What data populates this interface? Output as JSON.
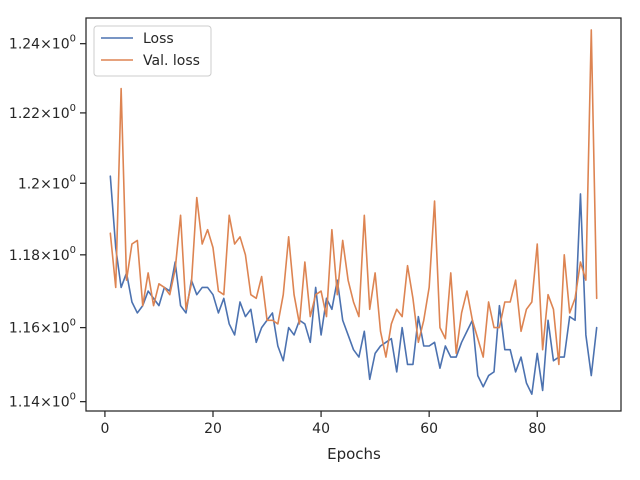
{
  "chart_data": {
    "type": "line",
    "title": "",
    "xlabel": "Epochs",
    "ylabel": "",
    "yscale": "log",
    "xlim": [
      -3.5,
      95.5
    ],
    "ylim": [
      1.1375,
      1.2475
    ],
    "xticks": [
      0,
      20,
      40,
      60,
      80
    ],
    "yticks": [
      1.14,
      1.16,
      1.18,
      1.2,
      1.22,
      1.24
    ],
    "ytick_labels": [
      {
        "mant": "1.14",
        "exp": "0"
      },
      {
        "mant": "1.16",
        "exp": "0"
      },
      {
        "mant": "1.18",
        "exp": "0"
      },
      {
        "mant": "1.2",
        "exp": "0"
      },
      {
        "mant": "1.22",
        "exp": "0"
      },
      {
        "mant": "1.24",
        "exp": "0"
      }
    ],
    "times_sign": "×",
    "grid": false,
    "legend_position": "top-left",
    "series": [
      {
        "name": "Loss",
        "color": "#4c72b0",
        "x": [
          1,
          2,
          3,
          4,
          5,
          6,
          7,
          8,
          9,
          10,
          11,
          12,
          13,
          14,
          15,
          16,
          17,
          18,
          19,
          20,
          21,
          22,
          23,
          24,
          25,
          26,
          27,
          28,
          29,
          30,
          31,
          32,
          33,
          34,
          35,
          36,
          37,
          38,
          39,
          40,
          41,
          42,
          43,
          44,
          45,
          46,
          47,
          48,
          49,
          50,
          51,
          52,
          53,
          54,
          55,
          56,
          57,
          58,
          59,
          60,
          61,
          62,
          63,
          64,
          65,
          66,
          67,
          68,
          69,
          70,
          71,
          72,
          73,
          74,
          75,
          76,
          77,
          78,
          79,
          80,
          81,
          82,
          83,
          84,
          85,
          86,
          87,
          88,
          89,
          90,
          91
        ],
        "y": [
          1.202,
          1.182,
          1.171,
          1.175,
          1.167,
          1.164,
          1.166,
          1.17,
          1.168,
          1.166,
          1.171,
          1.17,
          1.178,
          1.166,
          1.164,
          1.173,
          1.169,
          1.171,
          1.171,
          1.169,
          1.164,
          1.168,
          1.161,
          1.158,
          1.167,
          1.163,
          1.165,
          1.156,
          1.16,
          1.162,
          1.164,
          1.155,
          1.151,
          1.16,
          1.158,
          1.162,
          1.161,
          1.156,
          1.171,
          1.158,
          1.168,
          1.165,
          1.173,
          1.162,
          1.158,
          1.154,
          1.152,
          1.159,
          1.146,
          1.153,
          1.155,
          1.156,
          1.157,
          1.148,
          1.16,
          1.15,
          1.15,
          1.163,
          1.155,
          1.155,
          1.156,
          1.149,
          1.155,
          1.152,
          1.152,
          1.156,
          1.159,
          1.162,
          1.147,
          1.144,
          1.147,
          1.148,
          1.166,
          1.154,
          1.154,
          1.148,
          1.152,
          1.145,
          1.142,
          1.153,
          1.143,
          1.162,
          1.151,
          1.152,
          1.152,
          1.163,
          1.162,
          1.197,
          1.158,
          1.147,
          1.16
        ]
      },
      {
        "name": "Val. loss",
        "color": "#dd8452",
        "x": [
          1,
          2,
          3,
          4,
          5,
          6,
          7,
          8,
          9,
          10,
          11,
          12,
          13,
          14,
          15,
          16,
          17,
          18,
          19,
          20,
          21,
          22,
          23,
          24,
          25,
          26,
          27,
          28,
          29,
          30,
          31,
          32,
          33,
          34,
          35,
          36,
          37,
          38,
          39,
          40,
          41,
          42,
          43,
          44,
          45,
          46,
          47,
          48,
          49,
          50,
          51,
          52,
          53,
          54,
          55,
          56,
          57,
          58,
          59,
          60,
          61,
          62,
          63,
          64,
          65,
          66,
          67,
          68,
          69,
          70,
          71,
          72,
          73,
          74,
          75,
          76,
          77,
          78,
          79,
          80,
          81,
          82,
          83,
          84,
          85,
          86,
          87,
          88,
          89,
          90,
          91
        ],
        "y": [
          1.186,
          1.171,
          1.227,
          1.173,
          1.183,
          1.184,
          1.166,
          1.175,
          1.166,
          1.172,
          1.171,
          1.169,
          1.176,
          1.191,
          1.165,
          1.172,
          1.196,
          1.183,
          1.187,
          1.182,
          1.17,
          1.169,
          1.191,
          1.183,
          1.185,
          1.18,
          1.169,
          1.168,
          1.174,
          1.162,
          1.162,
          1.161,
          1.169,
          1.185,
          1.169,
          1.161,
          1.178,
          1.163,
          1.169,
          1.17,
          1.163,
          1.187,
          1.169,
          1.184,
          1.173,
          1.167,
          1.163,
          1.191,
          1.165,
          1.175,
          1.159,
          1.152,
          1.161,
          1.165,
          1.163,
          1.177,
          1.168,
          1.156,
          1.162,
          1.171,
          1.195,
          1.16,
          1.157,
          1.175,
          1.153,
          1.164,
          1.17,
          1.162,
          1.157,
          1.152,
          1.167,
          1.16,
          1.16,
          1.167,
          1.167,
          1.173,
          1.159,
          1.165,
          1.167,
          1.183,
          1.154,
          1.169,
          1.165,
          1.15,
          1.18,
          1.164,
          1.168,
          1.178,
          1.173,
          1.244,
          1.168
        ]
      }
    ]
  }
}
